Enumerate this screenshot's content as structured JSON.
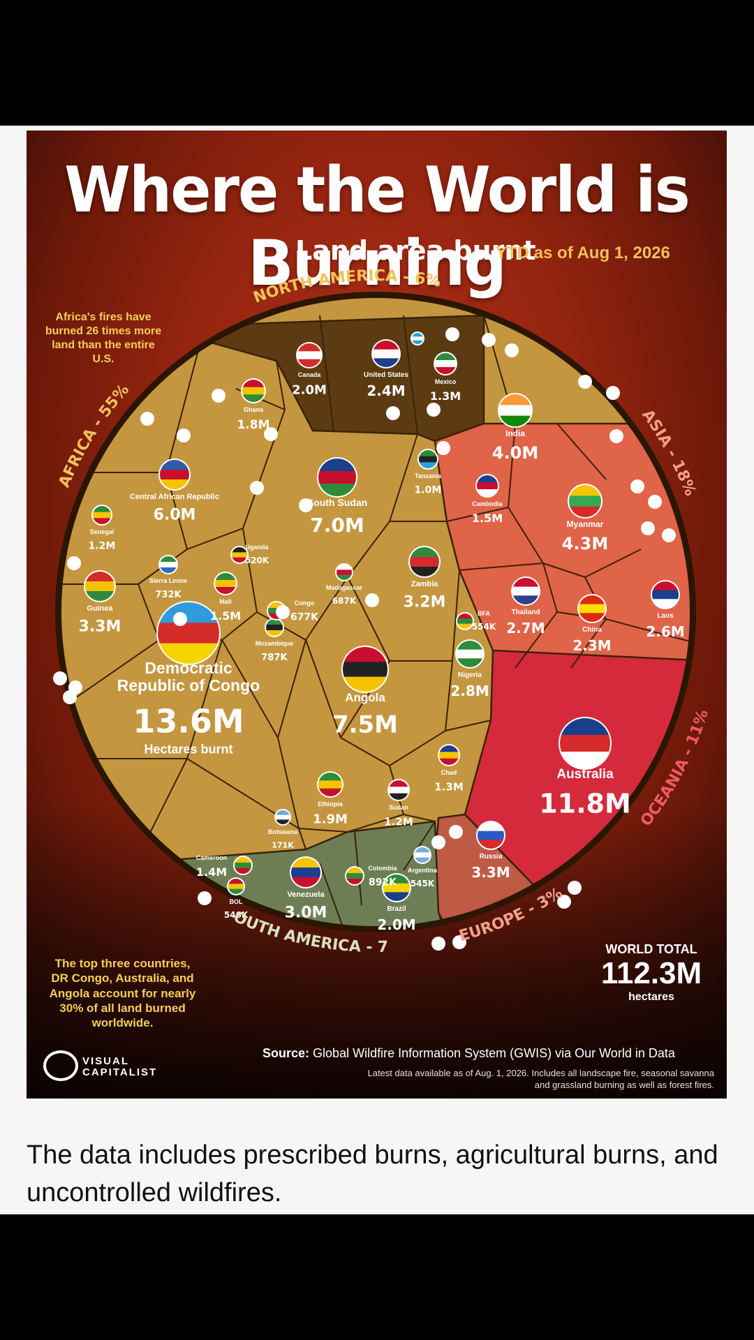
{
  "infographic": {
    "title": "Where the World is Burning",
    "subtitle": "Land area burnt",
    "subtitle_date": "YTD as of Aug 1, 2026",
    "note_top": "Africa's fires have burned 26 times more land than the entire U.S.",
    "note_bottom": "The top three countries, DR Congo, Australia, and Angola account for nearly 30% of all land burned worldwide.",
    "world_total_label": "WORLD TOTAL",
    "world_total_value": "112.3M",
    "world_total_unit": "hectares",
    "logo_text_line1": "VISUAL",
    "logo_text_line2": "CAPITALIST",
    "source_label": "Source:",
    "source_text": "Global Wildfire Information System (GWIS) via Our World in Data",
    "footnote": "Latest data available as of Aug. 1, 2026. Includes all landscape fire, seasonal savanna and grassland burning as well as forest fires."
  },
  "caption": "The data includes prescribed burns, agricultural burns, and uncontrolled wildfires.",
  "colors": {
    "africa": "#c4963f",
    "north_america": "#5c3b12",
    "asia": "#df6448",
    "oceania": "#d42a3c",
    "europe": "#bf5a45",
    "south_america": "#6d7e55",
    "cell_border": "#3a2208"
  },
  "chart_data": {
    "type": "voronoi-treemap",
    "unit": "hectares",
    "total": "112.3M",
    "regions": [
      {
        "name": "AFRICA - 55%",
        "share": 55
      },
      {
        "name": "NORTH AMERICA - 6%",
        "share": 6
      },
      {
        "name": "ASIA - 18%",
        "share": 18
      },
      {
        "name": "OCEANIA - 11%",
        "share": 11
      },
      {
        "name": "EUROPE - 3%",
        "share": 3
      },
      {
        "name": "SOUTH AMERICA - 7%",
        "share": 7
      }
    ],
    "countries": [
      {
        "name": "Democratic Republic of Congo",
        "label": "13.6M",
        "extra": "Hectares burnt",
        "region": "africa"
      },
      {
        "name": "Australia",
        "label": "11.8M",
        "region": "oceania"
      },
      {
        "name": "Angola",
        "label": "7.5M",
        "region": "africa"
      },
      {
        "name": "South Sudan",
        "label": "7.0M",
        "region": "africa"
      },
      {
        "name": "Central African Republic",
        "label": "6.0M",
        "region": "africa"
      },
      {
        "name": "Myanmar",
        "label": "4.3M",
        "region": "asia"
      },
      {
        "name": "India",
        "label": "4.0M",
        "region": "asia"
      },
      {
        "name": "Guinea",
        "label": "3.3M",
        "region": "africa"
      },
      {
        "name": "Russia",
        "label": "3.3M",
        "region": "europe"
      },
      {
        "name": "Zambia",
        "label": "3.2M",
        "region": "africa"
      },
      {
        "name": "Venezuela",
        "label": "3.0M",
        "region": "south_america"
      },
      {
        "name": "Nigeria",
        "label": "2.8M",
        "region": "africa"
      },
      {
        "name": "Thailand",
        "label": "2.7M",
        "region": "asia"
      },
      {
        "name": "Laos",
        "label": "2.6M",
        "region": "asia"
      },
      {
        "name": "United States",
        "label": "2.4M",
        "region": "north_america"
      },
      {
        "name": "China",
        "label": "2.3M",
        "region": "asia"
      },
      {
        "name": "Canada",
        "label": "2.0M",
        "region": "north_america"
      },
      {
        "name": "Brazil",
        "label": "2.0M",
        "region": "south_america"
      },
      {
        "name": "Ethiopia",
        "label": "1.9M",
        "region": "africa"
      },
      {
        "name": "Ghana",
        "label": "1.8M",
        "region": "africa"
      },
      {
        "name": "Mali",
        "label": "1.5M",
        "region": "africa"
      },
      {
        "name": "Cambodia",
        "label": "1.5M",
        "region": "asia"
      },
      {
        "name": "Cameroon",
        "label": "1.4M",
        "region": "africa"
      },
      {
        "name": "Mexico",
        "label": "1.3M",
        "region": "north_america"
      },
      {
        "name": "Chad",
        "label": "1.3M",
        "region": "africa"
      },
      {
        "name": "Senegal",
        "label": "1.2M",
        "region": "africa"
      },
      {
        "name": "Sudan",
        "label": "1.2M",
        "region": "africa"
      },
      {
        "name": "Tanzania",
        "label": "1.0M",
        "region": "africa"
      },
      {
        "name": "Colombia",
        "label": "892K",
        "region": "south_america"
      },
      {
        "name": "Mozambique",
        "label": "787K",
        "region": "africa"
      },
      {
        "name": "Sierra Leone",
        "label": "732K",
        "region": "africa"
      },
      {
        "name": "Madagascar",
        "label": "687K",
        "region": "africa"
      },
      {
        "name": "Congo",
        "label": "677K",
        "region": "africa"
      },
      {
        "name": "BFA",
        "label": "554K",
        "region": "africa"
      },
      {
        "name": "BOL",
        "label": "546K",
        "region": "south_america"
      },
      {
        "name": "Argentina",
        "label": "545K",
        "region": "south_america"
      },
      {
        "name": "Uganda",
        "label": "520K",
        "region": "africa"
      },
      {
        "name": "Botswana",
        "label": "171K",
        "region": "africa"
      }
    ]
  }
}
